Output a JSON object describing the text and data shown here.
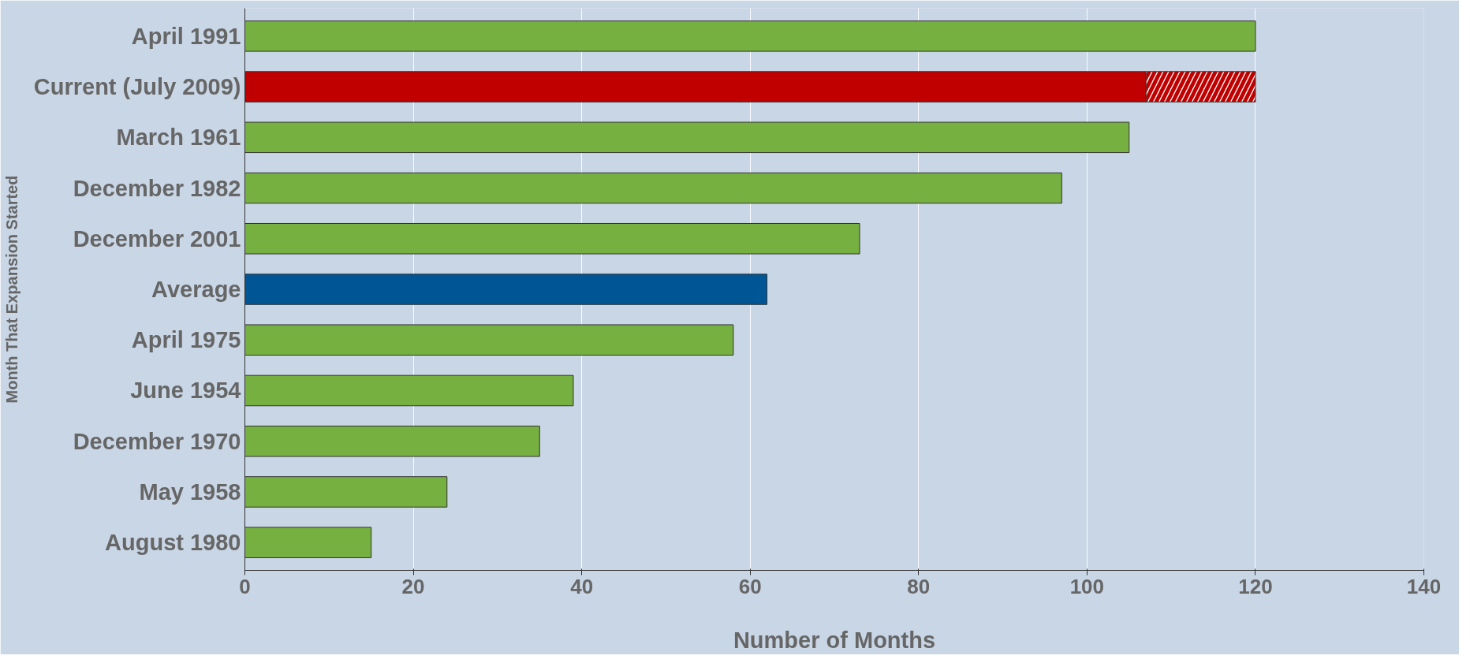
{
  "chart_data": {
    "type": "bar",
    "orientation": "horizontal",
    "stacked": true,
    "categories": [
      "April 1991",
      "Current (July 2009)",
      "March 1961",
      "December 1982",
      "December 2001",
      "Average",
      "April 1975",
      "June 1954",
      "December 1970",
      "May 1958",
      "August 1980"
    ],
    "series": [
      {
        "colors": [
          "#76b041",
          "#c00000",
          "#76b041",
          "#76b041",
          "#76b041",
          "#005594",
          "#76b041",
          "#76b041",
          "#76b041",
          "#76b041",
          "#76b041"
        ],
        "values": [
          120,
          107,
          105,
          97,
          73,
          62,
          58,
          39,
          35,
          24,
          15
        ]
      },
      {
        "color": "#ffffff",
        "values": [
          null,
          13,
          null,
          null,
          null,
          null,
          null,
          null,
          null,
          null,
          null
        ]
      }
    ],
    "xlim": [
      0,
      140
    ],
    "xticks": [
      0,
      20,
      40,
      60,
      80,
      100,
      120,
      140
    ],
    "xlabel": "Number of Months",
    "ylabel": "Month That Expansion Started",
    "grid": "x"
  }
}
